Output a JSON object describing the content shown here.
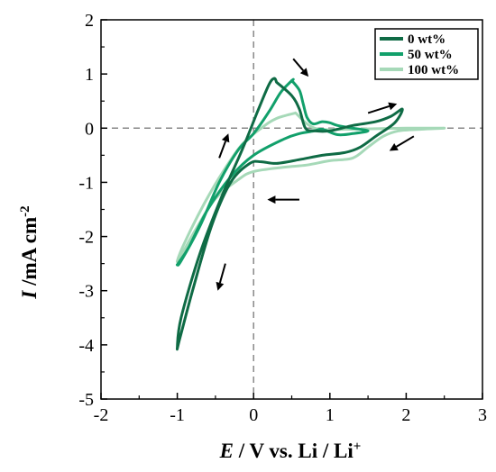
{
  "chart_data": {
    "type": "line",
    "ylabel_symbol": "I",
    "ylabel_unit": " /mA cm",
    "ylabel_sup": "-2",
    "xlabel_symbol": "E",
    "xlabel_unit": " / V vs. Li / Li",
    "xlabel_sup": "+",
    "xlim": [
      -2,
      3
    ],
    "ylim": [
      -5,
      2
    ],
    "xticks": [
      "-2",
      "-1",
      "0",
      "1",
      "2",
      "3"
    ],
    "yticks": [
      "2",
      "1",
      "0",
      "-1",
      "-2",
      "-3",
      "-4",
      "-5"
    ],
    "grid": false,
    "zero_lines": "dashed",
    "legend_position": "top-right",
    "series": [
      {
        "name": "0 wt%",
        "color": "#0f6b45",
        "points": [
          [
            0.3,
            0.85
          ],
          [
            0.5,
            0.6
          ],
          [
            0.6,
            0.35
          ],
          [
            0.68,
            0.0
          ],
          [
            0.8,
            -0.05
          ],
          [
            1.0,
            -0.05
          ],
          [
            1.3,
            0.05
          ],
          [
            1.6,
            0.12
          ],
          [
            1.8,
            0.22
          ],
          [
            1.95,
            0.35
          ],
          [
            1.85,
            0.1
          ],
          [
            1.6,
            -0.15
          ],
          [
            1.4,
            -0.35
          ],
          [
            1.2,
            -0.45
          ],
          [
            0.9,
            -0.5
          ],
          [
            0.6,
            -0.58
          ],
          [
            0.3,
            -0.65
          ],
          [
            0.1,
            -0.62
          ],
          [
            -0.05,
            -0.65
          ],
          [
            -0.3,
            -1.0
          ],
          [
            -0.55,
            -1.8
          ],
          [
            -0.8,
            -3.0
          ],
          [
            -0.97,
            -3.9
          ],
          [
            -1.0,
            -4.05
          ],
          [
            -0.95,
            -3.5
          ],
          [
            -0.7,
            -2.3
          ],
          [
            -0.4,
            -1.2
          ],
          [
            -0.15,
            -0.4
          ],
          [
            0.05,
            0.3
          ],
          [
            0.2,
            0.8
          ],
          [
            0.27,
            0.92
          ],
          [
            0.3,
            0.85
          ]
        ]
      },
      {
        "name": "50 wt%",
        "color": "#12a06b",
        "points": [
          [
            0.5,
            0.88
          ],
          [
            0.6,
            0.7
          ],
          [
            0.65,
            0.45
          ],
          [
            0.7,
            0.2
          ],
          [
            0.78,
            0.08
          ],
          [
            0.9,
            0.12
          ],
          [
            1.0,
            0.1
          ],
          [
            1.1,
            0.05
          ],
          [
            1.3,
            0.0
          ],
          [
            1.5,
            -0.05
          ],
          [
            1.3,
            -0.1
          ],
          [
            1.1,
            -0.12
          ],
          [
            0.9,
            -0.02
          ],
          [
            0.8,
            -0.05
          ],
          [
            0.6,
            -0.1
          ],
          [
            0.4,
            -0.2
          ],
          [
            0.0,
            -0.5
          ],
          [
            -0.3,
            -0.9
          ],
          [
            -0.6,
            -1.5
          ],
          [
            -0.85,
            -2.2
          ],
          [
            -0.98,
            -2.48
          ],
          [
            -1.0,
            -2.52
          ],
          [
            -0.95,
            -2.45
          ],
          [
            -0.7,
            -1.8
          ],
          [
            -0.45,
            -1.0
          ],
          [
            -0.2,
            -0.4
          ],
          [
            0.0,
            -0.1
          ],
          [
            0.2,
            0.3
          ],
          [
            0.35,
            0.65
          ],
          [
            0.48,
            0.85
          ],
          [
            0.52,
            0.9
          ],
          [
            0.5,
            0.88
          ]
        ]
      },
      {
        "name": "100 wt%",
        "color": "#a6d9b8",
        "points": [
          [
            0.55,
            0.28
          ],
          [
            0.8,
            0.0
          ],
          [
            1.2,
            -0.02
          ],
          [
            1.6,
            -0.01
          ],
          [
            2.0,
            0.0
          ],
          [
            2.3,
            0.0
          ],
          [
            2.5,
            0.0
          ],
          [
            2.2,
            -0.02
          ],
          [
            1.9,
            -0.05
          ],
          [
            1.7,
            -0.15
          ],
          [
            1.5,
            -0.35
          ],
          [
            1.3,
            -0.55
          ],
          [
            1.0,
            -0.6
          ],
          [
            0.7,
            -0.68
          ],
          [
            0.4,
            -0.72
          ],
          [
            0.0,
            -0.8
          ],
          [
            -0.2,
            -0.95
          ],
          [
            -0.5,
            -1.3
          ],
          [
            -0.75,
            -1.85
          ],
          [
            -0.95,
            -2.35
          ],
          [
            -1.0,
            -2.45
          ],
          [
            -0.9,
            -2.1
          ],
          [
            -0.65,
            -1.4
          ],
          [
            -0.4,
            -0.8
          ],
          [
            -0.15,
            -0.3
          ],
          [
            0.1,
            0.0
          ],
          [
            0.3,
            0.18
          ],
          [
            0.55,
            0.28
          ]
        ]
      }
    ]
  },
  "arrows": [
    {
      "name": "arrow-up-left",
      "from": [
        -0.45,
        -0.55
      ],
      "to": [
        -0.33,
        -0.1
      ]
    },
    {
      "name": "arrow-top",
      "from": [
        0.52,
        1.28
      ],
      "to": [
        0.72,
        0.95
      ]
    },
    {
      "name": "arrow-upper-right",
      "from": [
        1.5,
        0.28
      ],
      "to": [
        1.88,
        0.45
      ]
    },
    {
      "name": "arrow-right",
      "from": [
        2.1,
        -0.15
      ],
      "to": [
        1.78,
        -0.42
      ]
    },
    {
      "name": "arrow-middle",
      "from": [
        0.6,
        -1.32
      ],
      "to": [
        0.18,
        -1.32
      ]
    },
    {
      "name": "arrow-down-left",
      "from": [
        -0.37,
        -2.5
      ],
      "to": [
        -0.47,
        -3.0
      ]
    }
  ]
}
